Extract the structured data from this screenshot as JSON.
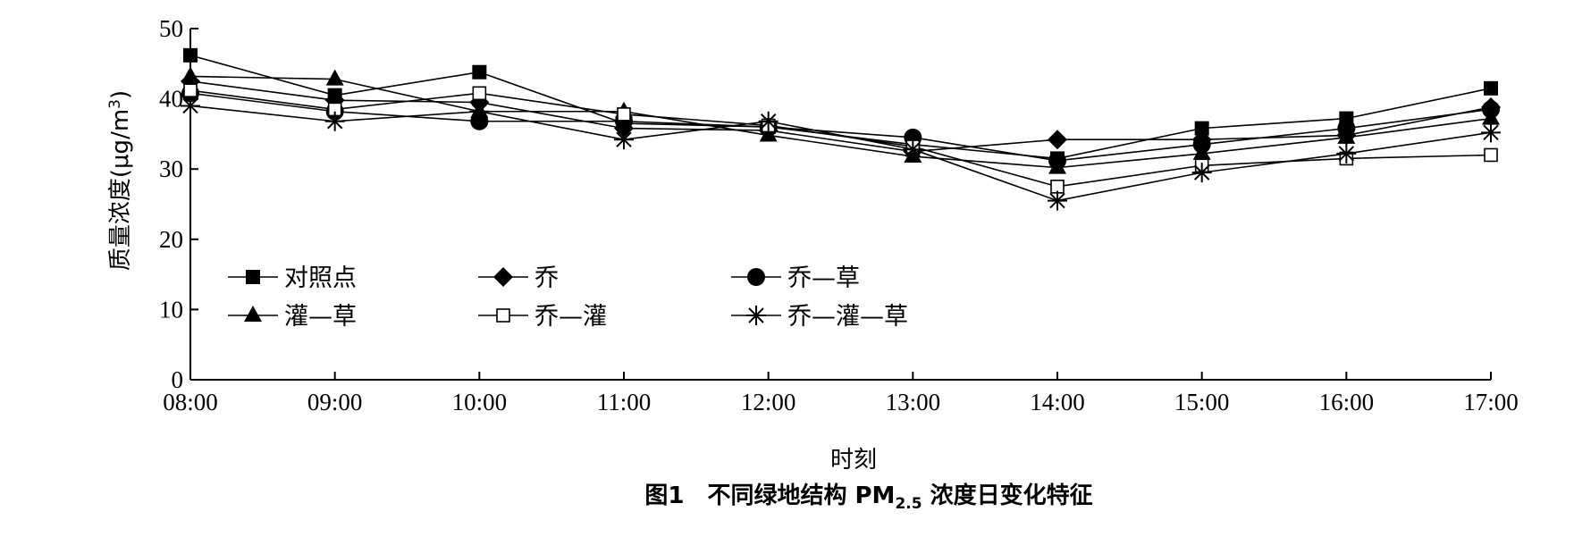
{
  "chart_data": {
    "type": "line",
    "caption": {
      "prefix": "图1　不同绿地结构 PM",
      "subscript": "2.5",
      "suffix": " 浓度日变化特征"
    },
    "xlabel": "时刻",
    "ylabel": {
      "main": "质量浓度(μg/m",
      "sup": "3",
      "close": ")"
    },
    "x": [
      "08:00",
      "09:00",
      "10:00",
      "11:00",
      "12:00",
      "13:00",
      "14:00",
      "15:00",
      "16:00",
      "17:00"
    ],
    "ylim": [
      0,
      50
    ],
    "yticks": [
      0,
      10,
      20,
      30,
      40,
      50
    ],
    "grid": false,
    "legend_position": "lower-left",
    "series": [
      {
        "name": "对照点",
        "marker": "square-filled",
        "values": [
          46.2,
          40.5,
          43.8,
          36.5,
          36.0,
          33.5,
          31.5,
          35.8,
          37.2,
          41.5
        ]
      },
      {
        "name": "乔",
        "marker": "diamond-filled",
        "values": [
          42.5,
          39.8,
          39.5,
          35.8,
          35.5,
          32.5,
          34.2,
          34.2,
          34.8,
          38.8
        ]
      },
      {
        "name": "乔—草",
        "marker": "circle-filled",
        "values": [
          40.8,
          38.2,
          36.8,
          36.8,
          36.0,
          34.5,
          31.2,
          33.5,
          35.8,
          38.5
        ]
      },
      {
        "name": "灌—草",
        "marker": "triangle-filled",
        "values": [
          43.2,
          42.8,
          38.2,
          38.2,
          34.8,
          31.8,
          30.2,
          32.2,
          34.5,
          37.2
        ]
      },
      {
        "name": "乔—灌",
        "marker": "square-open",
        "values": [
          41.2,
          38.5,
          40.8,
          37.8,
          36.2,
          33.2,
          27.5,
          30.5,
          31.5,
          32.0
        ]
      },
      {
        "name": "乔—灌—草",
        "marker": "star",
        "values": [
          39.0,
          36.8,
          38.2,
          34.2,
          36.8,
          32.8,
          25.5,
          29.5,
          32.2,
          35.2
        ]
      }
    ]
  }
}
